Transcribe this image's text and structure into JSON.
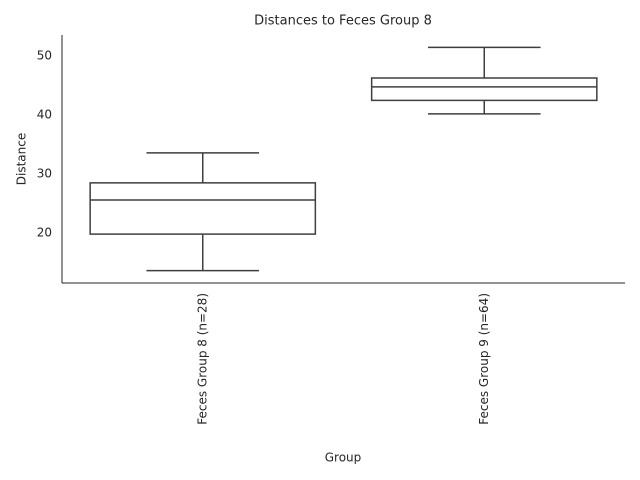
{
  "chart_data": {
    "type": "box",
    "title": "Distances to Feces Group 8",
    "x_label": "Group",
    "y_label": "Distance",
    "categories": [
      "Feces Group 8 (n=28)",
      "Feces Group 9 (n=64)"
    ],
    "boxes": [
      {
        "low": 13.6,
        "q1": 19.8,
        "median": 25.6,
        "q3": 28.5,
        "high": 33.6
      },
      {
        "low": 40.2,
        "q1": 42.5,
        "median": 44.8,
        "q3": 46.3,
        "high": 51.5
      }
    ],
    "color": "#3f3f3f",
    "fill": "#ffffff",
    "ylim": [
      11.5,
      53.6
    ],
    "yticks": [
      20,
      30,
      40,
      50
    ],
    "grid": false
  }
}
